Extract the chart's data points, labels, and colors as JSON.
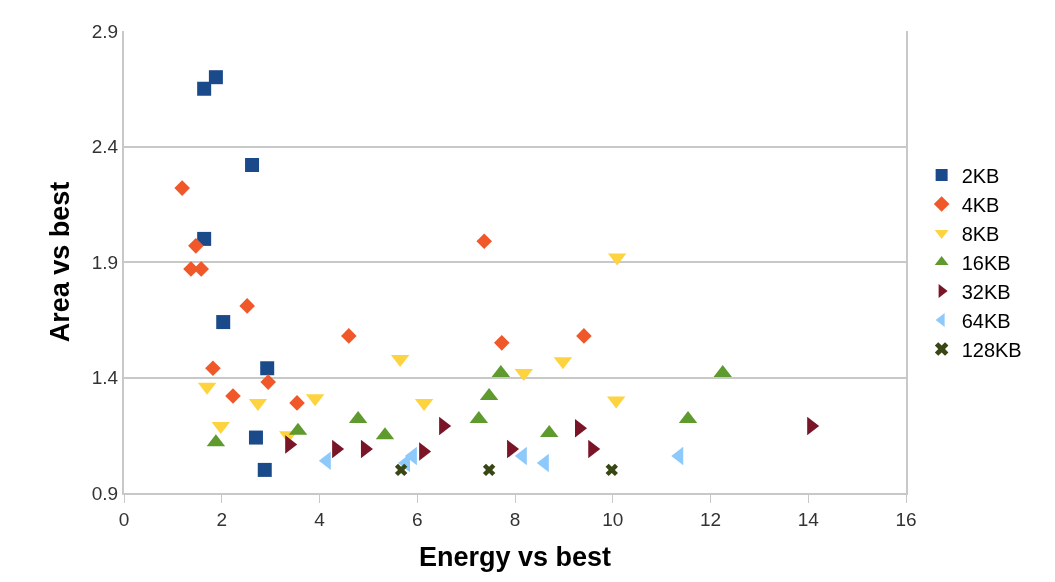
{
  "chart_data": {
    "type": "scatter",
    "xlabel": "Energy vs best",
    "ylabel": "Area vs best",
    "xlim": [
      0,
      16
    ],
    "xticks": [
      0,
      2,
      4,
      6,
      8,
      10,
      12,
      14,
      16
    ],
    "ylim": [
      0.9,
      2.9
    ],
    "yticks": [
      0.9,
      1.4,
      1.9,
      2.4,
      2.9
    ],
    "grid": "y",
    "legend": "right",
    "series": [
      {
        "name": "2KB",
        "color": "#1b4a8a",
        "marker": "square",
        "x": [
          1.64,
          1.88,
          2.62,
          1.64,
          2.03,
          2.93,
          2.7,
          2.88
        ],
        "values": [
          2.65,
          2.7,
          2.32,
          2.0,
          1.64,
          1.44,
          1.14,
          1.0
        ]
      },
      {
        "name": "4KB",
        "color": "#f0582a",
        "marker": "diamond",
        "x": [
          1.19,
          1.47,
          1.37,
          1.58,
          2.52,
          1.82,
          2.95,
          2.23,
          3.54,
          4.6,
          7.37,
          7.73,
          9.41
        ],
        "values": [
          2.22,
          1.97,
          1.87,
          1.87,
          1.71,
          1.44,
          1.38,
          1.32,
          1.29,
          1.58,
          1.99,
          1.55,
          1.58
        ]
      },
      {
        "name": "8KB",
        "color": "#fdd33f",
        "marker": "triangle-down",
        "x": [
          1.7,
          1.98,
          2.74,
          3.91,
          3.36,
          5.65,
          6.14,
          8.18,
          8.98,
          10.09,
          10.07
        ],
        "values": [
          1.36,
          1.19,
          1.29,
          1.31,
          1.15,
          1.48,
          1.29,
          1.42,
          1.47,
          1.92,
          1.3
        ]
      },
      {
        "name": "16KB",
        "color": "#5f9a2e",
        "marker": "triangle",
        "x": [
          1.88,
          3.56,
          4.79,
          5.34,
          7.26,
          7.47,
          7.71,
          8.7,
          11.54,
          12.25
        ],
        "values": [
          1.12,
          1.17,
          1.22,
          1.15,
          1.22,
          1.32,
          1.42,
          1.16,
          1.22,
          1.42
        ]
      },
      {
        "name": "32KB",
        "color": "#7a1528",
        "marker": "triangle-right",
        "x": [
          3.38,
          4.34,
          4.93,
          6.12,
          6.53,
          7.92,
          9.31,
          9.58,
          14.06
        ],
        "values": [
          1.11,
          1.09,
          1.09,
          1.08,
          1.19,
          1.09,
          1.18,
          1.09,
          1.19
        ]
      },
      {
        "name": "64KB",
        "color": "#8ec9fb",
        "marker": "triangle-left",
        "x": [
          4.15,
          5.77,
          5.91,
          8.16,
          8.61,
          11.36
        ],
        "values": [
          1.04,
          1.03,
          1.06,
          1.06,
          1.03,
          1.06
        ]
      },
      {
        "name": "128KB",
        "color": "#394714",
        "marker": "cross",
        "x": [
          5.67,
          7.47,
          9.98
        ],
        "values": [
          1.0,
          1.0,
          1.0
        ]
      }
    ]
  }
}
